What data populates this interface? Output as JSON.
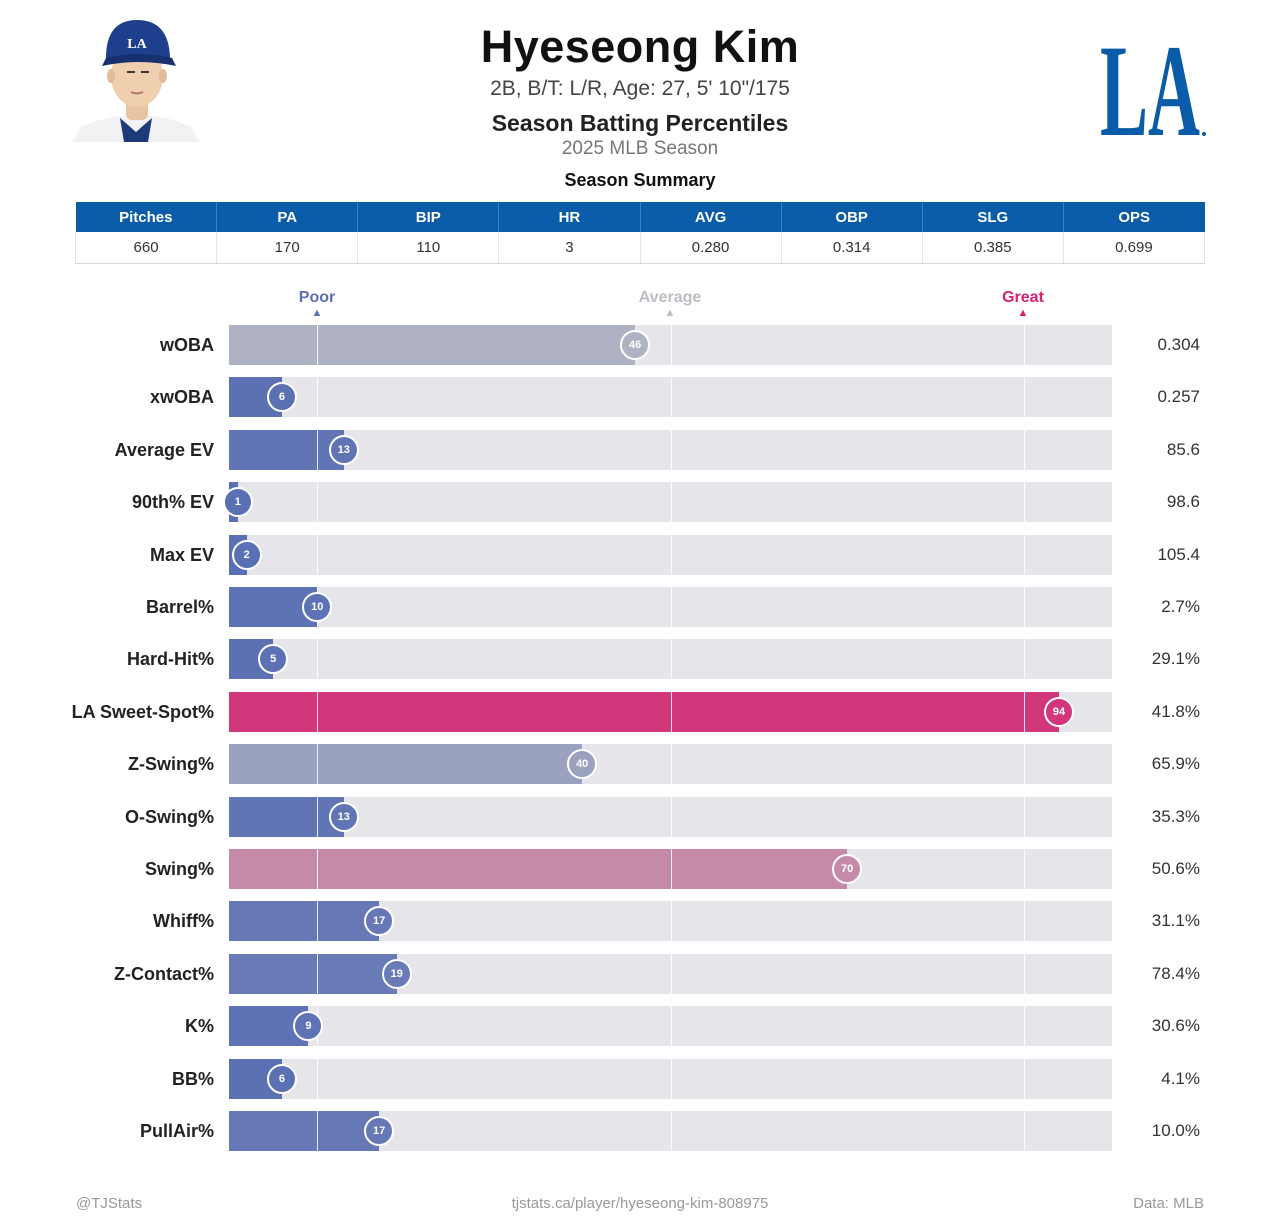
{
  "header": {
    "name": "Hyeseong Kim",
    "info": "2B, B/T: L/R, Age: 27, 5' 10\"/175",
    "subtitle": "Season Batting Percentiles",
    "season": "2025 MLB Season",
    "team_logo_text": "LA"
  },
  "summary": {
    "caption": "Season Summary",
    "columns": [
      "Pitches",
      "PA",
      "BIP",
      "HR",
      "AVG",
      "OBP",
      "SLG",
      "OPS"
    ],
    "values": [
      "660",
      "170",
      "110",
      "3",
      "0.280",
      "0.314",
      "0.385",
      "0.699"
    ]
  },
  "scale": {
    "poor": "Poor",
    "average": "Average",
    "great": "Great"
  },
  "colors": {
    "poor": "#5a6fb5",
    "average": "#bdbdc4",
    "great": "#d5216f",
    "header_blue": "#0a5ba8",
    "track": "#e6e6ea"
  },
  "chart_data": {
    "type": "bar",
    "orientation": "horizontal",
    "title": "Season Batting Percentiles",
    "xlim": [
      0,
      100
    ],
    "reference_lines": [
      10,
      50,
      90
    ],
    "categories": [
      "wOBA",
      "xwOBA",
      "Average EV",
      "90th% EV",
      "Max EV",
      "Barrel%",
      "Hard-Hit%",
      "LA Sweet-Spot%",
      "Z-Swing%",
      "O-Swing%",
      "Swing%",
      "Whiff%",
      "Z-Contact%",
      "K%",
      "BB%",
      "PullAir%"
    ],
    "percentiles": [
      46,
      6,
      13,
      1,
      2,
      10,
      5,
      94,
      40,
      13,
      70,
      17,
      19,
      9,
      6,
      17
    ],
    "values": [
      "0.304",
      "0.257",
      "85.6",
      "98.6",
      "105.4",
      "2.7%",
      "29.1%",
      "41.8%",
      "65.9%",
      "35.3%",
      "50.6%",
      "31.1%",
      "78.4%",
      "30.6%",
      "4.1%",
      "10.0%"
    ]
  },
  "footer": {
    "left": "@TJStats",
    "center": "tjstats.ca/player/hyeseong-kim-808975",
    "right": "Data: MLB"
  }
}
